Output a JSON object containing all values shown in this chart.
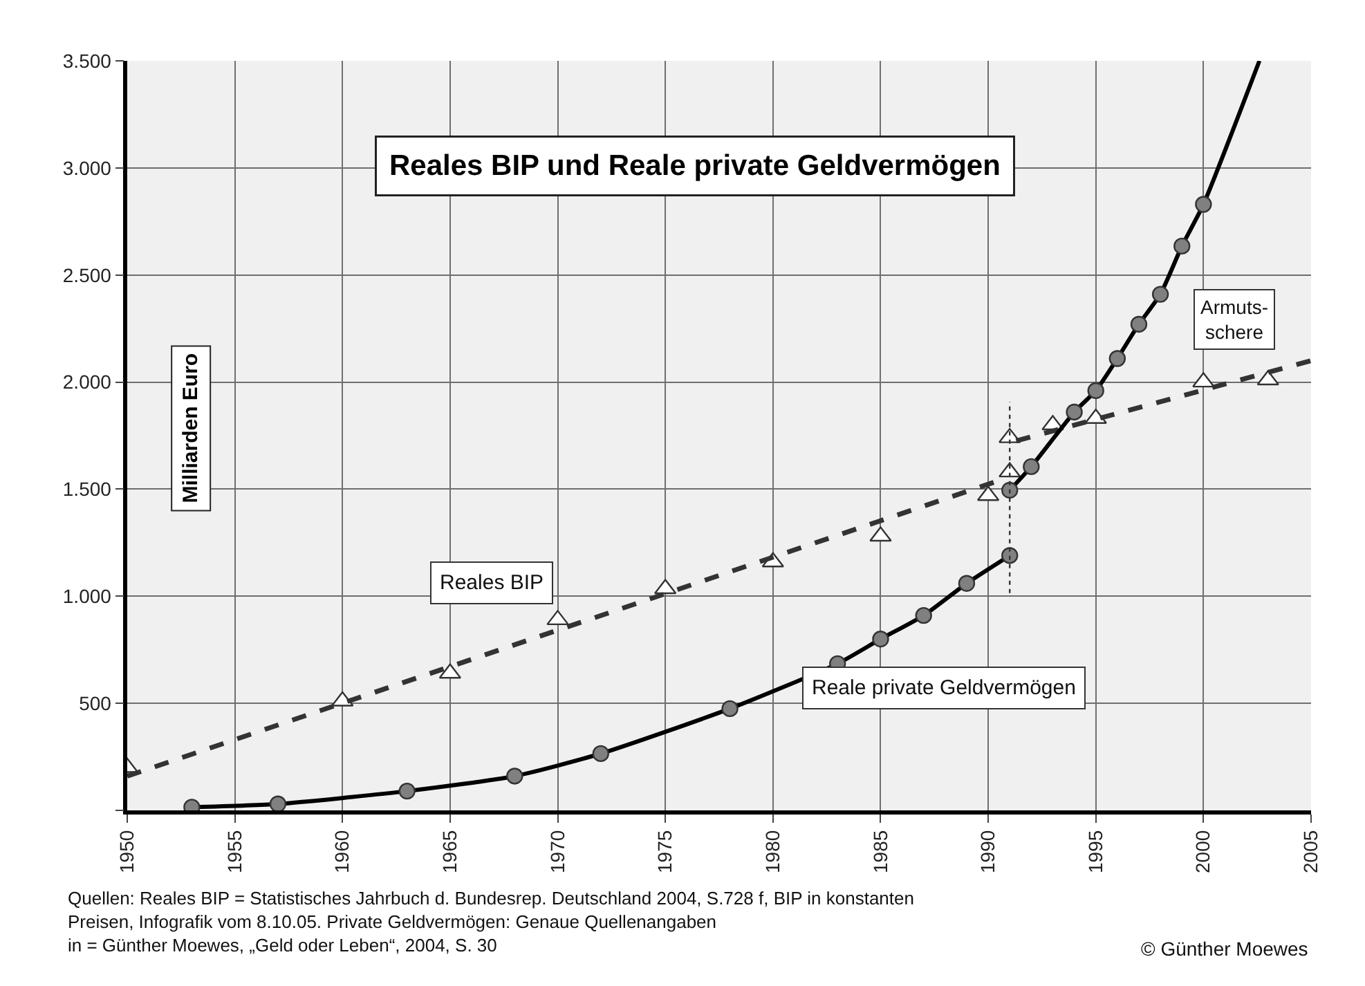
{
  "chart_data": {
    "type": "scatter",
    "title": "Reales BIP und Reale private Geldvermögen",
    "ylabel": "Milliarden Euro",
    "xlim": [
      1950,
      2005
    ],
    "xticks": [
      {
        "value": 1950,
        "label": "1950"
      },
      {
        "value": 1955,
        "label": "1955"
      },
      {
        "value": 1960,
        "label": "1960"
      },
      {
        "value": 1965,
        "label": "1965"
      },
      {
        "value": 1970,
        "label": "1970"
      },
      {
        "value": 1975,
        "label": "1975"
      },
      {
        "value": 1980,
        "label": "1980"
      },
      {
        "value": 1985,
        "label": "1985"
      },
      {
        "value": 1990,
        "label": "1990"
      },
      {
        "value": 1995,
        "label": "1995"
      },
      {
        "value": 2000,
        "label": "2000"
      },
      {
        "value": 2005,
        "label": "2005"
      }
    ],
    "ylim": [
      0,
      3500
    ],
    "yticks": [
      {
        "value": 0,
        "label": null
      },
      {
        "value": 500,
        "label": "500"
      },
      {
        "value": 1000,
        "label": "1.000"
      },
      {
        "value": 1500,
        "label": "1.500"
      },
      {
        "value": 2000,
        "label": "2.000"
      },
      {
        "value": 2500,
        "label": "2.500"
      },
      {
        "value": 3000,
        "label": "3.000"
      },
      {
        "value": 3500,
        "label": "3.500"
      }
    ],
    "grid": true,
    "series": [
      {
        "name": "Reales BIP",
        "marker": "triangle",
        "color": "#ffffff",
        "x": [
          1950,
          1960,
          1965,
          1970,
          1975,
          1980,
          1985,
          1990,
          1991,
          1991,
          1993,
          1995,
          2000,
          2003
        ],
        "values": [
          200,
          510,
          640,
          890,
          1035,
          1160,
          1280,
          1470,
          1580,
          1740,
          1800,
          1830,
          2000,
          2010
        ]
      },
      {
        "type": "line",
        "marker": "none",
        "line_style": "dashed",
        "color": "#333333",
        "x": [
          1950,
          1990.5
        ],
        "values": [
          160,
          1540
        ]
      },
      {
        "type": "line",
        "marker": "none",
        "line_style": "dashed",
        "color": "#333333",
        "x": [
          1991.3,
          2005
        ],
        "values": [
          1725,
          2100
        ]
      },
      {
        "type": "line",
        "marker": "none",
        "line_style": "solid",
        "color": "#000000",
        "x": [
          1953,
          1957,
          1963,
          1968,
          1972,
          1978,
          1983,
          1985,
          1987,
          1989,
          1991
        ],
        "values": [
          15,
          30,
          90,
          160,
          265,
          475,
          685,
          800,
          910,
          1060,
          1190
        ]
      },
      {
        "type": "line",
        "marker": "none",
        "line_style": "solid",
        "color": "#000000",
        "x": [
          1991,
          1992,
          1994,
          1995,
          1996,
          1997,
          1998,
          1999,
          2000,
          2002.6
        ],
        "values": [
          1495,
          1605,
          1860,
          1960,
          2110,
          2270,
          2410,
          2635,
          2830,
          3500
        ]
      },
      {
        "name": "Reale private Geldvermögen",
        "marker": "circle",
        "color": "#808080",
        "x": [
          1953,
          1957,
          1963,
          1968,
          1972,
          1978,
          1983,
          1985,
          1987,
          1989,
          1991,
          1991,
          1992,
          1994,
          1995,
          1996,
          1997,
          1998,
          1999,
          2000
        ],
        "values": [
          15,
          30,
          90,
          160,
          265,
          475,
          685,
          800,
          910,
          1060,
          1190,
          1495,
          1605,
          1860,
          1960,
          2110,
          2270,
          2410,
          2635,
          2830
        ]
      }
    ],
    "ref_lines": [
      {
        "axis": "x",
        "value": 1991,
        "line_style": "dotted",
        "color": "#333333"
      }
    ],
    "annotations": [
      "Armuts-\nschere",
      "Quellen: Reales BIP = Statistisches Jahrbuch d. Bundesrep. Deutschland 2004, S.728 f, BIP in konstanten\nPreisen, Infografik vom 8.10.05. Private Geldvermögen: Genaue Quellenangaben\nin = Günther Moewes, „Geld oder Leben“, 2004, S. 30",
      "© Günther Moewes"
    ]
  }
}
